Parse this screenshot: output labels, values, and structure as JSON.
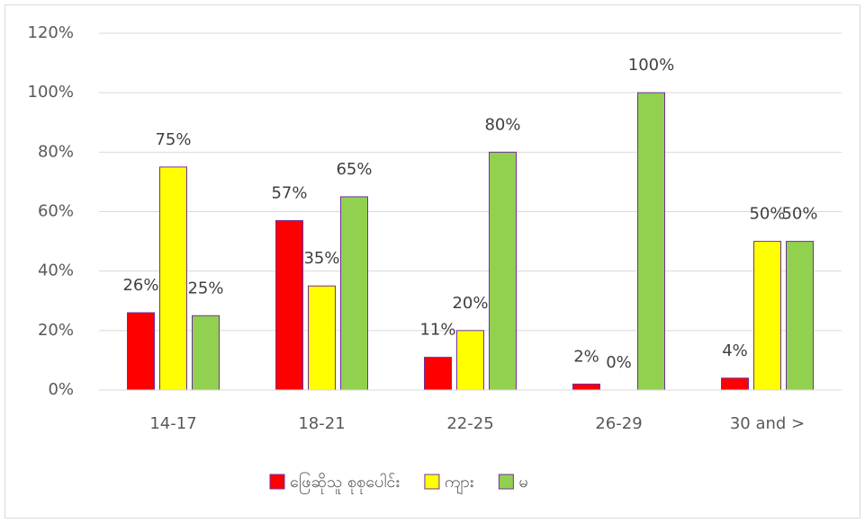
{
  "chart_data": {
    "type": "bar",
    "categories": [
      "14-17",
      "18-21",
      "22-25",
      "26-29",
      "30 and >"
    ],
    "series": [
      {
        "name": "ဖြေဆိုသူ စုစုပေါင်း",
        "color": "#ff0000",
        "values": [
          26,
          57,
          11,
          2,
          4
        ],
        "value_labels": [
          "26%",
          "57%",
          "11%",
          "2%",
          "4%"
        ]
      },
      {
        "name": "ကျား",
        "color": "#ffff00",
        "values": [
          75,
          35,
          20,
          0,
          50
        ],
        "value_labels": [
          "75%",
          "35%",
          "20%",
          "0%",
          "50%"
        ]
      },
      {
        "name": "မ",
        "color": "#92d050",
        "values": [
          25,
          65,
          80,
          100,
          50
        ],
        "value_labels": [
          "25%",
          "65%",
          "80%",
          "100%",
          "50%"
        ]
      }
    ],
    "ylim": [
      0,
      120
    ],
    "yticks": [
      {
        "value": 0,
        "label": "0%"
      },
      {
        "value": 20,
        "label": "20%"
      },
      {
        "value": 40,
        "label": "40%"
      },
      {
        "value": 60,
        "label": "60%"
      },
      {
        "value": 80,
        "label": "80%"
      },
      {
        "value": 100,
        "label": "100%"
      },
      {
        "value": 120,
        "label": "120%"
      }
    ],
    "grid": true,
    "legend": "bottom"
  }
}
